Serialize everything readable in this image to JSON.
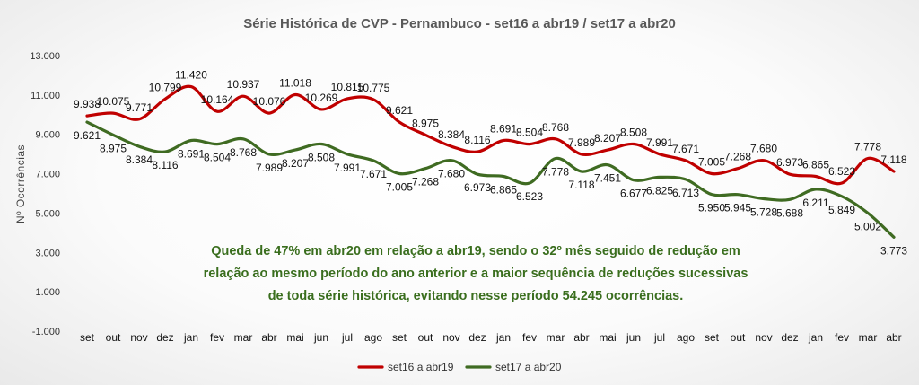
{
  "chart_data": {
    "type": "line",
    "title": "Série Histórica de CVP - Pernambuco - set16 a abr19 /  set17 a abr20",
    "ylabel": "Nº Ocorrências",
    "xlabel": "",
    "ylim": [
      -1000,
      13000
    ],
    "yticks": [
      -1000,
      1000,
      3000,
      5000,
      7000,
      9000,
      11000,
      13000
    ],
    "ytick_labels": [
      "-1.000",
      "1.000",
      "3.000",
      "5.000",
      "7.000",
      "9.000",
      "11.000",
      "13.000"
    ],
    "categories": [
      "set",
      "out",
      "nov",
      "dez",
      "jan",
      "fev",
      "mar",
      "abr",
      "mai",
      "jun",
      "jul",
      "ago",
      "set",
      "out",
      "nov",
      "dez",
      "jan",
      "fev",
      "mar",
      "abr",
      "mai",
      "jun",
      "jul",
      "ago",
      "set",
      "out",
      "nov",
      "dez",
      "jan",
      "fev",
      "mar",
      "abr"
    ],
    "grid": false,
    "legend_position": "bottom",
    "series": [
      {
        "name": "set16 a abr19",
        "color": "#c00000",
        "values": [
          9938,
          10075,
          9771,
          10799,
          11420,
          10164,
          10937,
          10076,
          11018,
          10269,
          10815,
          10775,
          9621,
          8975,
          8384,
          8116,
          8691,
          8504,
          8768,
          7989,
          8207,
          8508,
          7991,
          7671,
          7005,
          7268,
          7680,
          6973,
          6865,
          6523,
          7778,
          7118
        ],
        "labels": [
          "9.938",
          "10.075",
          "9.771",
          "10.799",
          "11.420",
          "10.164",
          "10.937",
          "10.076",
          "11.018",
          "10.269",
          "10.815",
          "10.775",
          "9.621",
          "8.975",
          "8.384",
          "8.116",
          "8.691",
          "8.504",
          "8.768",
          "7.989",
          "8.207",
          "8.508",
          "7.991",
          "7.671",
          "7.005",
          "7.268",
          "7.680",
          "6.973",
          "6.865",
          "6.523",
          "7.778",
          "7.118"
        ]
      },
      {
        "name": "set17 a abr20",
        "color": "#3f6b22",
        "values": [
          9621,
          8975,
          8384,
          8116,
          8691,
          8504,
          8768,
          7989,
          8207,
          8508,
          7991,
          7671,
          7005,
          7268,
          7680,
          6973,
          6865,
          6523,
          7778,
          7118,
          7451,
          6677,
          6825,
          6713,
          5950,
          5945,
          5728,
          5688,
          6211,
          5849,
          5002,
          3773
        ],
        "labels": [
          "9.621",
          "8.975",
          "8.384",
          "8.116",
          "8.691",
          "8.504",
          "8.768",
          "7.989",
          "8.207",
          "8.508",
          "7.991",
          "7.671",
          "7.005",
          "7.268",
          "7.680",
          "6.973",
          "6.865",
          "6.523",
          "7.778",
          "7.118",
          "7.451",
          "6.677",
          "6.825",
          "6.713",
          "5.950",
          "5.945",
          "5.728",
          "5.688",
          "6.211",
          "5.849",
          "5.002",
          "3.773"
        ]
      }
    ],
    "annotations": [
      "Queda de 47% em abr20 em relação a abr19, sendo o 32º mês seguido de redução em relação ao mesmo período do ano anterior e a maior sequência de reduções sucessivas de toda série histórica, evitando nesse período 54.245 ocorrências."
    ]
  }
}
